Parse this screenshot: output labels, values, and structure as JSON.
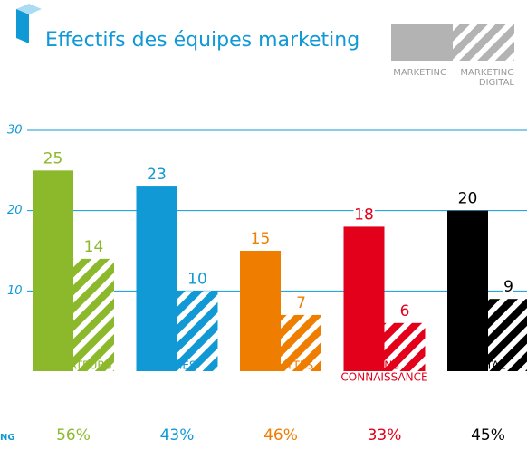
{
  "chart_data": {
    "type": "bar",
    "title": "Effectifs des équipes marketing",
    "categories": [
      [
        "UTILISATEURS"
      ],
      [
        "INITIÉS"
      ],
      [
        "NÉOPHYTES"
      ],
      [
        "SANS",
        "CONNAISSANCE"
      ],
      [
        "TOTAL"
      ]
    ],
    "category_colors": [
      "#8cb82b",
      "#1199d6",
      "#ef7d00",
      "#e2001a",
      "#000000"
    ],
    "series": [
      {
        "name": [
          "MARKETING"
        ],
        "pattern": "solid",
        "legend_color": "#b3b3b3",
        "values": [
          25,
          23,
          15,
          18,
          20
        ]
      },
      {
        "name": [
          "MARKETING",
          "DIGITAL"
        ],
        "pattern": "hatched",
        "legend_color": "#b3b3b3",
        "values": [
          14,
          10,
          7,
          6,
          9
        ]
      }
    ],
    "ylim": [
      0,
      30
    ],
    "yticks": [
      10,
      20,
      30
    ],
    "grid": true,
    "grid_color": "#1199d6",
    "percentages": {
      "label": "NG",
      "values": [
        56,
        43,
        46,
        33,
        45
      ],
      "value_labels": [
        "56%",
        "43%",
        "46%",
        "33%",
        "45%"
      ]
    }
  }
}
